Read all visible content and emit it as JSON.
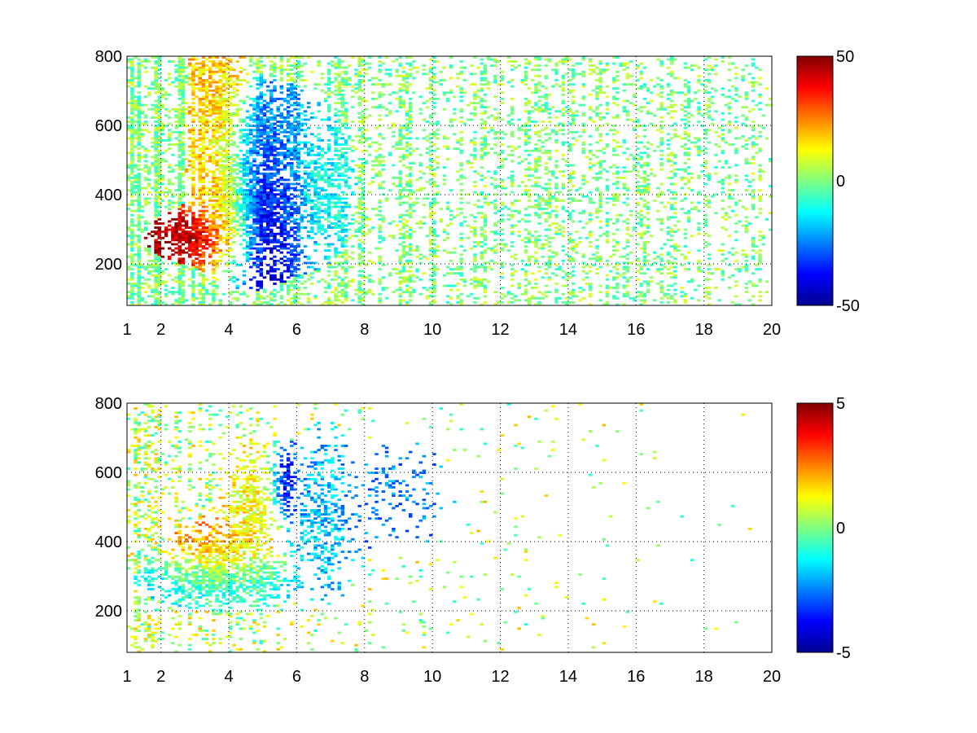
{
  "chart_data": [
    {
      "type": "heatmap",
      "title": "",
      "xlabel": "",
      "ylabel": "",
      "xlim": [
        1,
        20
      ],
      "ylim": [
        80,
        800
      ],
      "x_ticks": [
        1,
        2,
        4,
        6,
        8,
        10,
        12,
        14,
        16,
        18,
        20
      ],
      "y_ticks": [
        200,
        400,
        600,
        800
      ],
      "grid": true,
      "colormap": "jet",
      "colorbar": {
        "position": "right",
        "min": -50,
        "max": 50,
        "ticks": [
          -50,
          0,
          50
        ]
      },
      "regions": [
        {
          "name": "core_positive",
          "x_center": 2.9,
          "y_center": 280,
          "x_spread": 0.7,
          "y_spread": 40,
          "value": 45,
          "density": 0.95
        },
        {
          "name": "ridge_positive",
          "x_center": 3.9,
          "y_center": 380,
          "x_spread": 0.5,
          "y_spread": 110,
          "value": 35,
          "density": 0.9
        },
        {
          "name": "upper_plume",
          "x_center": 3.7,
          "y_center": 650,
          "x_spread": 0.5,
          "y_spread": 150,
          "value": 18,
          "density": 0.8
        },
        {
          "name": "core_negative",
          "x_center": 4.9,
          "y_center": 380,
          "x_spread": 0.8,
          "y_spread": 130,
          "value": -42,
          "density": 0.95
        },
        {
          "name": "band_negative",
          "x_center": 5.2,
          "y_center": 550,
          "x_spread": 0.7,
          "y_spread": 90,
          "value": -22,
          "density": 0.8
        },
        {
          "name": "tail_negative",
          "x_center": 6.6,
          "y_center": 430,
          "x_spread": 0.6,
          "y_spread": 120,
          "value": -10,
          "density": 0.65
        }
      ],
      "background": {
        "value": 0,
        "value_spread": 10,
        "density_near": 0.55,
        "density_far": 0.12,
        "density_decay_x": 9
      }
    },
    {
      "type": "heatmap",
      "title": "",
      "xlabel": "",
      "ylabel": "",
      "xlim": [
        1,
        20
      ],
      "ylim": [
        80,
        800
      ],
      "x_ticks": [
        1,
        2,
        4,
        6,
        8,
        10,
        12,
        14,
        16,
        18,
        20
      ],
      "y_ticks": [
        200,
        400,
        600,
        800
      ],
      "grid": true,
      "colormap": "jet",
      "colorbar": {
        "position": "right",
        "min": -5,
        "max": 5,
        "ticks": [
          -5,
          0,
          5
        ]
      },
      "regions": [
        {
          "name": "lower_band",
          "x_center": 3.8,
          "y_center": 290,
          "x_spread": 1.3,
          "y_spread": 45,
          "value": -1.5,
          "density": 0.9
        },
        {
          "name": "upper_band",
          "x_center": 3.6,
          "y_center": 360,
          "x_spread": 0.8,
          "y_spread": 60,
          "value": 2.2,
          "density": 0.8
        },
        {
          "name": "ridge",
          "x_center": 4.7,
          "y_center": 480,
          "x_spread": 0.5,
          "y_spread": 120,
          "value": 1.2,
          "density": 0.7
        },
        {
          "name": "strong_negative",
          "x_center": 5.7,
          "y_center": 560,
          "x_spread": 0.25,
          "y_spread": 60,
          "value": -4.2,
          "density": 0.8
        },
        {
          "name": "right_patch",
          "x_center": 6.8,
          "y_center": 480,
          "x_spread": 0.5,
          "y_spread": 140,
          "value": -1.8,
          "density": 0.5
        },
        {
          "name": "sparse_right",
          "x_center": 8.8,
          "y_center": 530,
          "x_spread": 1.0,
          "y_spread": 90,
          "value": -2.5,
          "density": 0.18
        }
      ],
      "background": {
        "value": 0.5,
        "value_spread": 1.5,
        "density_near": 0.25,
        "density_far": 0.0,
        "density_decay_x": 4
      }
    }
  ]
}
